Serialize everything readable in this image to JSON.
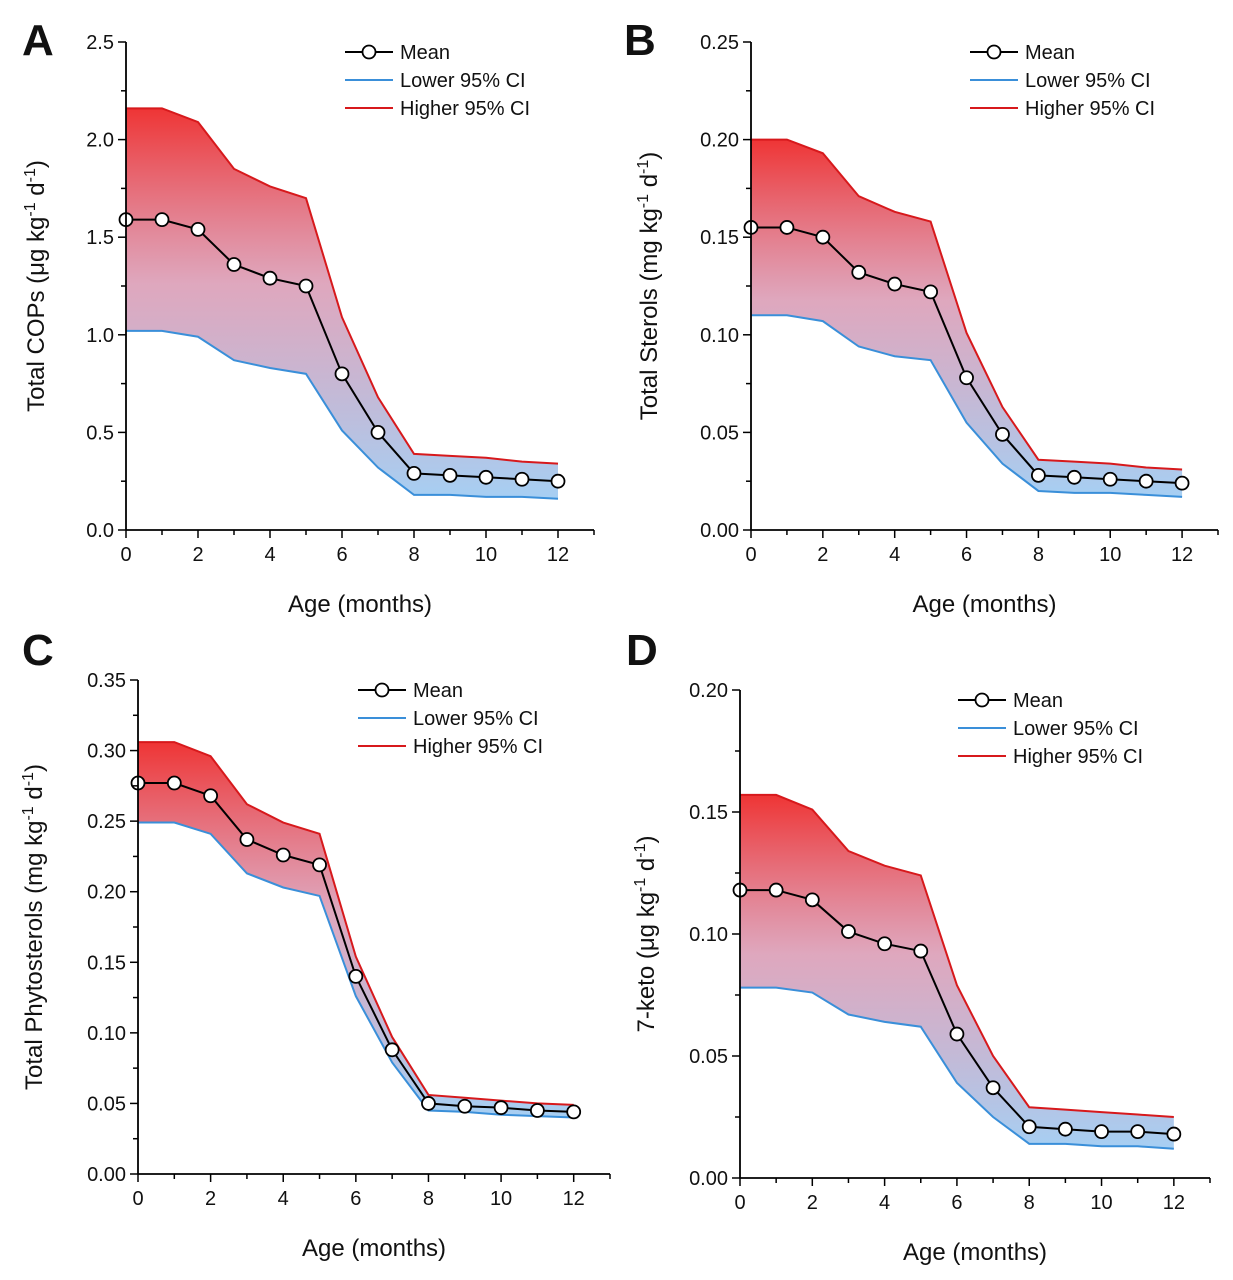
{
  "figure": {
    "panels": [
      "A",
      "B",
      "C",
      "D"
    ]
  },
  "chart_data": [
    {
      "panel": "A",
      "type": "line",
      "xlabel": "Age (months)",
      "ylabel": "Total COPs (μg kg⁻¹ d⁻¹)",
      "ylabel_parts": {
        "base": "Total COPs (μg kg",
        "sup1": "-1",
        "mid": " d",
        "sup2": "-1",
        "end": ")"
      },
      "xlim": [
        0,
        13
      ],
      "ylim": [
        0,
        2.5
      ],
      "x_ticks": [
        0,
        2,
        4,
        6,
        8,
        10,
        12
      ],
      "y_ticks": [
        0.0,
        0.5,
        1.0,
        1.5,
        2.0,
        2.5
      ],
      "y_tick_labels": [
        "0.0",
        "0.5",
        "1.0",
        "1.5",
        "2.0",
        "2.5"
      ],
      "legend_position": "top-right",
      "x": [
        0,
        1,
        2,
        3,
        4,
        5,
        6,
        7,
        8,
        9,
        10,
        11,
        12
      ],
      "series": [
        {
          "name": "Mean",
          "color": "#000000",
          "marker": "circle",
          "values": [
            1.59,
            1.59,
            1.54,
            1.36,
            1.29,
            1.25,
            0.8,
            0.5,
            0.29,
            0.28,
            0.27,
            0.26,
            0.25
          ]
        },
        {
          "name": "Lower 95% CI",
          "color": "#3a8fd9",
          "values": [
            1.02,
            1.02,
            0.99,
            0.87,
            0.83,
            0.8,
            0.51,
            0.32,
            0.18,
            0.18,
            0.17,
            0.17,
            0.16
          ]
        },
        {
          "name": "Higher 95% CI",
          "color": "#d7191c",
          "values": [
            2.16,
            2.16,
            2.09,
            1.85,
            1.76,
            1.7,
            1.09,
            0.68,
            0.39,
            0.38,
            0.37,
            0.35,
            0.34
          ]
        }
      ]
    },
    {
      "panel": "B",
      "type": "line",
      "xlabel": "Age (months)",
      "ylabel": "Total Sterols (mg kg⁻¹ d⁻¹)",
      "ylabel_parts": {
        "base": "Total Sterols (mg kg",
        "sup1": "-1",
        "mid": " d",
        "sup2": "-1",
        "end": ")"
      },
      "xlim": [
        0,
        13
      ],
      "ylim": [
        0,
        0.25
      ],
      "x_ticks": [
        0,
        2,
        4,
        6,
        8,
        10,
        12
      ],
      "y_ticks": [
        0.0,
        0.05,
        0.1,
        0.15,
        0.2,
        0.25
      ],
      "y_tick_labels": [
        "0.00",
        "0.05",
        "0.10",
        "0.15",
        "0.20",
        "0.25"
      ],
      "legend_position": "top-right",
      "x": [
        0,
        1,
        2,
        3,
        4,
        5,
        6,
        7,
        8,
        9,
        10,
        11,
        12
      ],
      "series": [
        {
          "name": "Mean",
          "color": "#000000",
          "marker": "circle",
          "values": [
            0.155,
            0.155,
            0.15,
            0.132,
            0.126,
            0.122,
            0.078,
            0.049,
            0.028,
            0.027,
            0.026,
            0.025,
            0.024
          ]
        },
        {
          "name": "Lower 95% CI",
          "color": "#3a8fd9",
          "values": [
            0.11,
            0.11,
            0.107,
            0.094,
            0.089,
            0.087,
            0.055,
            0.034,
            0.02,
            0.019,
            0.019,
            0.018,
            0.017
          ]
        },
        {
          "name": "Higher 95% CI",
          "color": "#d7191c",
          "values": [
            0.2,
            0.2,
            0.193,
            0.171,
            0.163,
            0.158,
            0.101,
            0.063,
            0.036,
            0.035,
            0.034,
            0.032,
            0.031
          ]
        }
      ]
    },
    {
      "panel": "C",
      "type": "line",
      "xlabel": "Age (months)",
      "ylabel": "Total Phytosterols (mg kg⁻¹ d⁻¹)",
      "ylabel_parts": {
        "base": "Total Phytosterols (mg kg",
        "sup1": "-1",
        "mid": " d",
        "sup2": "-1",
        "end": ")"
      },
      "xlim": [
        0,
        13
      ],
      "ylim": [
        0,
        0.35
      ],
      "x_ticks": [
        0,
        2,
        4,
        6,
        8,
        10,
        12
      ],
      "y_ticks": [
        0.0,
        0.05,
        0.1,
        0.15,
        0.2,
        0.25,
        0.3,
        0.35
      ],
      "y_tick_labels": [
        "0.00",
        "0.05",
        "0.10",
        "0.15",
        "0.20",
        "0.25",
        "0.30",
        "0.35"
      ],
      "legend_position": "top-right",
      "x": [
        0,
        1,
        2,
        3,
        4,
        5,
        6,
        7,
        8,
        9,
        10,
        11,
        12
      ],
      "series": [
        {
          "name": "Mean",
          "color": "#000000",
          "marker": "circle",
          "values": [
            0.277,
            0.277,
            0.268,
            0.237,
            0.226,
            0.219,
            0.14,
            0.088,
            0.05,
            0.048,
            0.047,
            0.045,
            0.044
          ]
        },
        {
          "name": "Lower 95% CI",
          "color": "#3a8fd9",
          "values": [
            0.249,
            0.249,
            0.241,
            0.213,
            0.203,
            0.197,
            0.126,
            0.079,
            0.045,
            0.044,
            0.042,
            0.041,
            0.04
          ]
        },
        {
          "name": "Higher 95% CI",
          "color": "#d7191c",
          "values": [
            0.306,
            0.306,
            0.296,
            0.262,
            0.249,
            0.241,
            0.154,
            0.097,
            0.056,
            0.054,
            0.052,
            0.05,
            0.049
          ]
        }
      ]
    },
    {
      "panel": "D",
      "type": "line",
      "xlabel": "Age (months)",
      "ylabel": "7-keto (μg kg⁻¹ d⁻¹)",
      "ylabel_parts": {
        "base": "7-keto (μg kg",
        "sup1": "-1",
        "mid": " d",
        "sup2": "-1",
        "end": ")"
      },
      "xlim": [
        0,
        13
      ],
      "ylim": [
        0,
        0.2
      ],
      "x_ticks": [
        0,
        2,
        4,
        6,
        8,
        10,
        12
      ],
      "y_ticks": [
        0.0,
        0.05,
        0.1,
        0.15,
        0.2
      ],
      "y_tick_labels": [
        "0.00",
        "0.05",
        "0.10",
        "0.15",
        "0.20"
      ],
      "legend_position": "top-right",
      "x": [
        0,
        1,
        2,
        3,
        4,
        5,
        6,
        7,
        8,
        9,
        10,
        11,
        12
      ],
      "series": [
        {
          "name": "Mean",
          "color": "#000000",
          "marker": "circle",
          "values": [
            0.118,
            0.118,
            0.114,
            0.101,
            0.096,
            0.093,
            0.059,
            0.037,
            0.021,
            0.02,
            0.019,
            0.019,
            0.018
          ]
        },
        {
          "name": "Lower 95% CI",
          "color": "#3a8fd9",
          "values": [
            0.078,
            0.078,
            0.076,
            0.067,
            0.064,
            0.062,
            0.039,
            0.025,
            0.014,
            0.014,
            0.013,
            0.013,
            0.012
          ]
        },
        {
          "name": "Higher 95% CI",
          "color": "#d7191c",
          "values": [
            0.157,
            0.157,
            0.151,
            0.134,
            0.128,
            0.124,
            0.079,
            0.05,
            0.029,
            0.028,
            0.027,
            0.026,
            0.025
          ]
        }
      ]
    }
  ]
}
